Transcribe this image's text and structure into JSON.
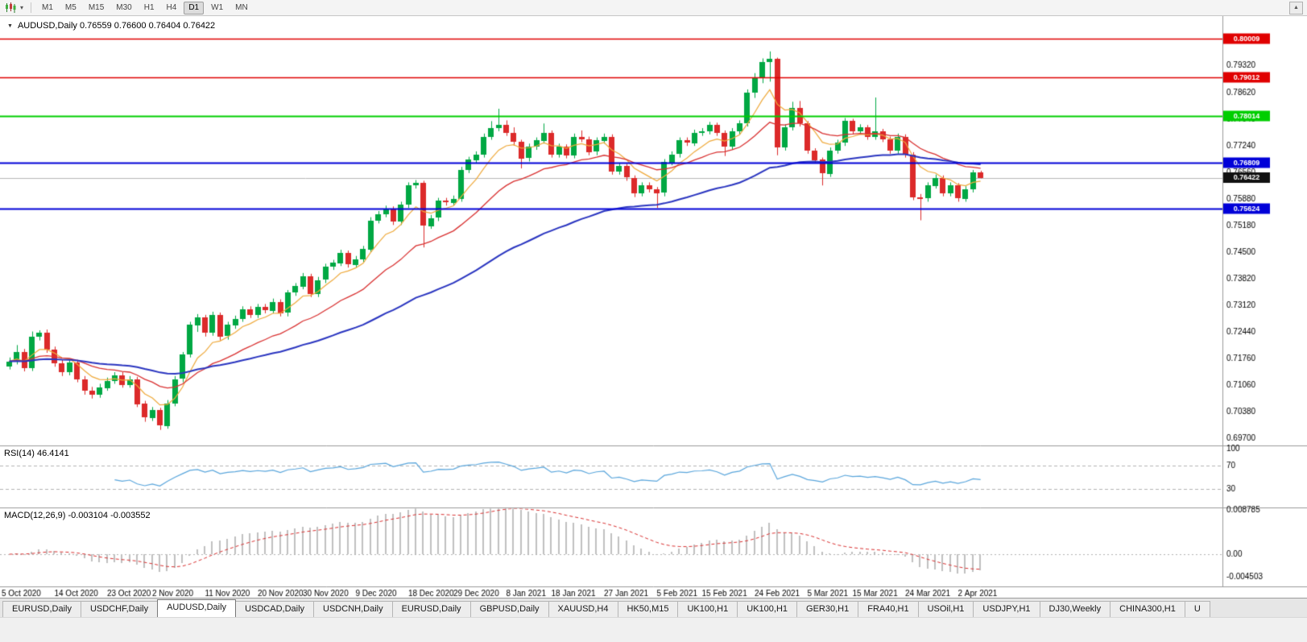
{
  "toolbar": {
    "timeframes": [
      "M1",
      "M5",
      "M15",
      "M30",
      "H1",
      "H4",
      "D1",
      "W1",
      "MN"
    ],
    "active_timeframe": "D1",
    "chart_dropdown_icon": "▾",
    "scroll_up_icon": "▲"
  },
  "chart": {
    "dropdown_glyph": "▼",
    "title_line": "AUDUSD,Daily 0.76559 0.76600 0.76404 0.76422",
    "symbol": "AUDUSD",
    "timeframe": "Daily",
    "open": "0.76559",
    "high": "0.76600",
    "low": "0.76404",
    "close": "0.76422"
  },
  "price_axis": {
    "ticks": [
      "0.79320",
      "0.78620",
      "0.77940",
      "0.77240",
      "0.76560",
      "0.75880",
      "0.75180",
      "0.74500",
      "0.73820",
      "0.73120",
      "0.72440",
      "0.71760",
      "0.71060",
      "0.70380",
      "0.69700"
    ],
    "current": {
      "label": "0.76422",
      "price": 0.76422
    }
  },
  "hlines": [
    {
      "price": 0.80009,
      "label": "0.80009",
      "color": "#e00000",
      "width": 1.5
    },
    {
      "price": 0.79012,
      "label": "0.79012",
      "color": "#e00000",
      "width": 1.5
    },
    {
      "price": 0.78014,
      "label": "0.78014",
      "color": "#00ce00",
      "width": 2
    },
    {
      "price": 0.76809,
      "label": "0.76809",
      "color": "#0000d8",
      "width": 2
    },
    {
      "price": 0.75624,
      "label": "0.75624",
      "color": "#0000d8",
      "width": 2
    }
  ],
  "rsi": {
    "label": "RSI(14) 46.4141",
    "period": 14,
    "value": 46.4141,
    "levels": [
      {
        "v": 100,
        "label": "100"
      },
      {
        "v": 70,
        "label": "70"
      },
      {
        "v": 30,
        "label": "30"
      }
    ]
  },
  "macd": {
    "label": "MACD(12,26,9) -0.003104 -0.003552",
    "fast": 12,
    "slow": 26,
    "signal": 9,
    "main_value": "-0.003104",
    "signal_value": "-0.003552",
    "ticks": [
      {
        "v": 0.008785,
        "label": "0.008785"
      },
      {
        "v": 0,
        "label": "0.00"
      },
      {
        "v": -0.004503,
        "label": "-0.004503"
      }
    ]
  },
  "dates": [
    {
      "label": "5 Oct 2020",
      "i": 0
    },
    {
      "label": "14 Oct 2020",
      "i": 7
    },
    {
      "label": "23 Oct 2020",
      "i": 14
    },
    {
      "label": "2 Nov 2020",
      "i": 20
    },
    {
      "label": "11 Nov 2020",
      "i": 27
    },
    {
      "label": "20 Nov 2020",
      "i": 34
    },
    {
      "label": "30 Nov 2020",
      "i": 40
    },
    {
      "label": "9 Dec 2020",
      "i": 47
    },
    {
      "label": "18 Dec 2020",
      "i": 54
    },
    {
      "label": "29 Dec 2020",
      "i": 60
    },
    {
      "label": "8 Jan 2021",
      "i": 67
    },
    {
      "label": "18 Jan 2021",
      "i": 73
    },
    {
      "label": "27 Jan 2021",
      "i": 80
    },
    {
      "label": "5 Feb 2021",
      "i": 87
    },
    {
      "label": "15 Feb 2021",
      "i": 93
    },
    {
      "label": "24 Feb 2021",
      "i": 100
    },
    {
      "label": "5 Mar 2021",
      "i": 107
    },
    {
      "label": "15 Mar 2021",
      "i": 113
    },
    {
      "label": "24 Mar 2021",
      "i": 120
    },
    {
      "label": "2 Apr 2021",
      "i": 127
    }
  ],
  "tabs": [
    {
      "label": "EURUSD,Daily",
      "active": false
    },
    {
      "label": "USDCHF,Daily",
      "active": false
    },
    {
      "label": "AUDUSD,Daily",
      "active": true
    },
    {
      "label": "USDCAD,Daily",
      "active": false
    },
    {
      "label": "USDCNH,Daily",
      "active": false
    },
    {
      "label": "EURUSD,Daily",
      "active": false
    },
    {
      "label": "GBPUSD,Daily",
      "active": false
    },
    {
      "label": "XAUUSD,H4",
      "active": false
    },
    {
      "label": "HK50,M15",
      "active": false
    },
    {
      "label": "UK100,H1",
      "active": false
    },
    {
      "label": "UK100,H1",
      "active": false
    },
    {
      "label": "GER30,H1",
      "active": false
    },
    {
      "label": "FRA40,H1",
      "active": false
    },
    {
      "label": "USOil,H1",
      "active": false
    },
    {
      "label": "USDJPY,H1",
      "active": false
    },
    {
      "label": "DJ30,Weekly",
      "active": false
    },
    {
      "label": "CHINA300,H1",
      "active": false
    },
    {
      "label": "U",
      "active": false
    }
  ],
  "colors": {
    "up": "#00a843",
    "down": "#dc2a2a",
    "ma_fast": "#efa93a",
    "ma_mid": "#d93030",
    "ma_slow": "#2a35c0",
    "rsi_line": "#5aa6dc",
    "rsi_level": "#b4b4b4",
    "macd_hist": "#c0c0c0",
    "macd_signal": "#d93030",
    "current_line": "#b8b8b8",
    "current_badge_bg": "#111111",
    "badge_text": "#ffffff",
    "axis_text": "#000000",
    "separator": "#9a9a9a"
  },
  "chart_data": {
    "type": "candlestick",
    "symbol": "AUDUSD",
    "timeframe": "Daily",
    "price_range": [
      0.6955,
      0.8055
    ],
    "candles": [
      [
        0.7155,
        0.7178,
        0.7147,
        0.7168
      ],
      [
        0.7168,
        0.721,
        0.716,
        0.7192
      ],
      [
        0.7192,
        0.72,
        0.7142,
        0.715
      ],
      [
        0.715,
        0.7245,
        0.7143,
        0.7232
      ],
      [
        0.7232,
        0.7248,
        0.7222,
        0.7242
      ],
      [
        0.7242,
        0.725,
        0.719,
        0.7198
      ],
      [
        0.7198,
        0.7206,
        0.7154,
        0.7162
      ],
      [
        0.7162,
        0.7172,
        0.713,
        0.714
      ],
      [
        0.714,
        0.7175,
        0.7132,
        0.7165
      ],
      [
        0.7165,
        0.7172,
        0.7114,
        0.7122
      ],
      [
        0.7122,
        0.713,
        0.7082,
        0.7092
      ],
      [
        0.7092,
        0.7102,
        0.7072,
        0.7082
      ],
      [
        0.7082,
        0.711,
        0.7074,
        0.71
      ],
      [
        0.71,
        0.7126,
        0.7092,
        0.7118
      ],
      [
        0.7118,
        0.714,
        0.711,
        0.7132
      ],
      [
        0.7132,
        0.714,
        0.71,
        0.7108
      ],
      [
        0.7108,
        0.713,
        0.71,
        0.7122
      ],
      [
        0.7122,
        0.7128,
        0.705,
        0.7058
      ],
      [
        0.7058,
        0.7066,
        0.7012,
        0.7022
      ],
      [
        0.7022,
        0.705,
        0.7014,
        0.7042
      ],
      [
        0.7042,
        0.7048,
        0.6991,
        0.7002
      ],
      [
        0.7002,
        0.7068,
        0.6994,
        0.706
      ],
      [
        0.706,
        0.713,
        0.7052,
        0.7122
      ],
      [
        0.7122,
        0.7192,
        0.7114,
        0.7185
      ],
      [
        0.7185,
        0.727,
        0.7178,
        0.7262
      ],
      [
        0.7262,
        0.729,
        0.7244,
        0.7282
      ],
      [
        0.7282,
        0.7288,
        0.7232,
        0.7242
      ],
      [
        0.7242,
        0.7296,
        0.7234,
        0.7288
      ],
      [
        0.7288,
        0.7294,
        0.7222,
        0.7232
      ],
      [
        0.7232,
        0.727,
        0.7224,
        0.7262
      ],
      [
        0.7262,
        0.7286,
        0.7252,
        0.7278
      ],
      [
        0.7278,
        0.731,
        0.727,
        0.7302
      ],
      [
        0.7302,
        0.731,
        0.728,
        0.7288
      ],
      [
        0.7288,
        0.7316,
        0.728,
        0.7308
      ],
      [
        0.7308,
        0.7316,
        0.7292,
        0.73
      ],
      [
        0.73,
        0.733,
        0.7292,
        0.7322
      ],
      [
        0.7322,
        0.7328,
        0.7284,
        0.7292
      ],
      [
        0.7292,
        0.7352,
        0.7284,
        0.7345
      ],
      [
        0.7345,
        0.737,
        0.7337,
        0.7362
      ],
      [
        0.7362,
        0.7396,
        0.7354,
        0.7388
      ],
      [
        0.7388,
        0.7394,
        0.7334,
        0.7342
      ],
      [
        0.7342,
        0.7386,
        0.7334,
        0.7378
      ],
      [
        0.7378,
        0.742,
        0.737,
        0.7412
      ],
      [
        0.7412,
        0.743,
        0.7404,
        0.7422
      ],
      [
        0.7422,
        0.7456,
        0.7414,
        0.7448
      ],
      [
        0.7448,
        0.7454,
        0.741,
        0.7418
      ],
      [
        0.7418,
        0.744,
        0.741,
        0.7432
      ],
      [
        0.7432,
        0.7466,
        0.7424,
        0.7458
      ],
      [
        0.7458,
        0.754,
        0.745,
        0.7532
      ],
      [
        0.7532,
        0.7556,
        0.7524,
        0.7548
      ],
      [
        0.7548,
        0.757,
        0.754,
        0.7562
      ],
      [
        0.7562,
        0.7568,
        0.752,
        0.7528
      ],
      [
        0.7528,
        0.758,
        0.752,
        0.7572
      ],
      [
        0.7572,
        0.763,
        0.7564,
        0.7622
      ],
      [
        0.7622,
        0.7636,
        0.7614,
        0.7628
      ],
      [
        0.7628,
        0.7634,
        0.7462,
        0.7518
      ],
      [
        0.7518,
        0.7546,
        0.751,
        0.7538
      ],
      [
        0.7538,
        0.759,
        0.753,
        0.7582
      ],
      [
        0.7582,
        0.759,
        0.757,
        0.7578
      ],
      [
        0.7578,
        0.7596,
        0.757,
        0.7588
      ],
      [
        0.7588,
        0.767,
        0.758,
        0.7662
      ],
      [
        0.7662,
        0.7696,
        0.7654,
        0.7688
      ],
      [
        0.7688,
        0.771,
        0.768,
        0.7702
      ],
      [
        0.7702,
        0.7756,
        0.7694,
        0.7748
      ],
      [
        0.7748,
        0.7788,
        0.774,
        0.777
      ],
      [
        0.777,
        0.782,
        0.7762,
        0.7778
      ],
      [
        0.7778,
        0.779,
        0.775,
        0.7758
      ],
      [
        0.7758,
        0.7772,
        0.7725,
        0.7735
      ],
      [
        0.7735,
        0.774,
        0.7666,
        0.7692
      ],
      [
        0.7692,
        0.773,
        0.7684,
        0.7722
      ],
      [
        0.7722,
        0.7746,
        0.7714,
        0.7738
      ],
      [
        0.7738,
        0.7782,
        0.773,
        0.7758
      ],
      [
        0.7758,
        0.7764,
        0.7694,
        0.7702
      ],
      [
        0.7702,
        0.773,
        0.7694,
        0.7722
      ],
      [
        0.7722,
        0.7728,
        0.7692,
        0.77
      ],
      [
        0.77,
        0.7756,
        0.7692,
        0.7748
      ],
      [
        0.7748,
        0.7764,
        0.7734,
        0.7742
      ],
      [
        0.7742,
        0.7748,
        0.77,
        0.7708
      ],
      [
        0.7708,
        0.7746,
        0.77,
        0.7738
      ],
      [
        0.7738,
        0.7756,
        0.773,
        0.7748
      ],
      [
        0.7748,
        0.7754,
        0.765,
        0.7658
      ],
      [
        0.7658,
        0.768,
        0.765,
        0.7672
      ],
      [
        0.7672,
        0.7678,
        0.7634,
        0.7642
      ],
      [
        0.7642,
        0.7648,
        0.7592,
        0.7602
      ],
      [
        0.7602,
        0.763,
        0.7594,
        0.7622
      ],
      [
        0.7622,
        0.763,
        0.7604,
        0.7612
      ],
      [
        0.7612,
        0.7618,
        0.7564,
        0.7602
      ],
      [
        0.7602,
        0.769,
        0.7594,
        0.7682
      ],
      [
        0.7682,
        0.771,
        0.7674,
        0.7702
      ],
      [
        0.7702,
        0.7746,
        0.7694,
        0.7738
      ],
      [
        0.7738,
        0.7746,
        0.7724,
        0.7732
      ],
      [
        0.7732,
        0.7766,
        0.7724,
        0.7758
      ],
      [
        0.7758,
        0.777,
        0.775,
        0.7762
      ],
      [
        0.7762,
        0.7786,
        0.7754,
        0.7778
      ],
      [
        0.7778,
        0.7784,
        0.775,
        0.7758
      ],
      [
        0.7758,
        0.7764,
        0.7698,
        0.7722
      ],
      [
        0.7722,
        0.777,
        0.7714,
        0.7762
      ],
      [
        0.7762,
        0.779,
        0.7754,
        0.7782
      ],
      [
        0.7782,
        0.787,
        0.7774,
        0.7862
      ],
      [
        0.7862,
        0.7912,
        0.7848,
        0.79
      ],
      [
        0.79,
        0.795,
        0.7886,
        0.794
      ],
      [
        0.794,
        0.7968,
        0.789,
        0.7948
      ],
      [
        0.7948,
        0.7952,
        0.77,
        0.772
      ],
      [
        0.772,
        0.778,
        0.7712,
        0.7772
      ],
      [
        0.7772,
        0.7838,
        0.7764,
        0.7822
      ],
      [
        0.7822,
        0.784,
        0.7774,
        0.7782
      ],
      [
        0.7782,
        0.7788,
        0.7704,
        0.7712
      ],
      [
        0.7712,
        0.7718,
        0.768,
        0.7688
      ],
      [
        0.7688,
        0.7694,
        0.7622,
        0.7652
      ],
      [
        0.7652,
        0.772,
        0.7644,
        0.7712
      ],
      [
        0.7712,
        0.774,
        0.7704,
        0.7732
      ],
      [
        0.7732,
        0.7796,
        0.7724,
        0.7788
      ],
      [
        0.7788,
        0.7794,
        0.7754,
        0.7762
      ],
      [
        0.7762,
        0.778,
        0.7754,
        0.7772
      ],
      [
        0.7772,
        0.7778,
        0.774,
        0.7748
      ],
      [
        0.7748,
        0.7849,
        0.774,
        0.7762
      ],
      [
        0.7762,
        0.7768,
        0.7734,
        0.7742
      ],
      [
        0.7742,
        0.7748,
        0.7704,
        0.7712
      ],
      [
        0.7712,
        0.7756,
        0.7704,
        0.7748
      ],
      [
        0.7748,
        0.7754,
        0.7694,
        0.7702
      ],
      [
        0.7702,
        0.7708,
        0.7584,
        0.7592
      ],
      [
        0.7592,
        0.76,
        0.7532,
        0.7588
      ],
      [
        0.7588,
        0.763,
        0.758,
        0.7622
      ],
      [
        0.7622,
        0.765,
        0.7614,
        0.7642
      ],
      [
        0.7642,
        0.7648,
        0.7594,
        0.7602
      ],
      [
        0.7602,
        0.763,
        0.7594,
        0.7622
      ],
      [
        0.7622,
        0.7628,
        0.758,
        0.7588
      ],
      [
        0.7588,
        0.762,
        0.758,
        0.7612
      ],
      [
        0.7612,
        0.7662,
        0.7604,
        0.7656
      ],
      [
        0.76559,
        0.766,
        0.76404,
        0.76422
      ]
    ]
  }
}
